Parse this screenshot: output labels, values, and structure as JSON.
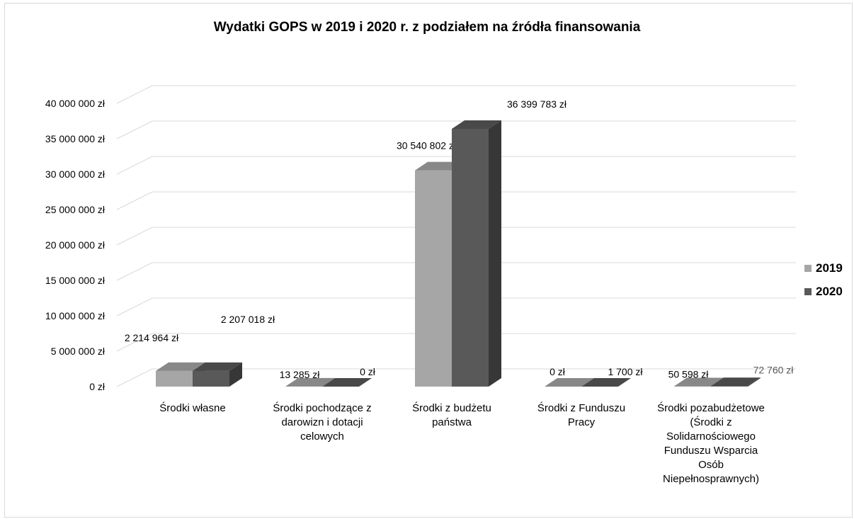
{
  "chart_data": {
    "type": "bar",
    "title": "Wydatki GOPS w 2019 i 2020 r. z podziałem na źródła finansowania",
    "categories": [
      "Środki własne",
      "Środki pochodzące z\ndarowizn i dotacji\ncelowych",
      "Środki z budżetu\npaństwa",
      "Środki z Funduszu\nPracy",
      "Środki pozabudżetowe\n(Środki z\nSolidarnościowego\nFunduszu Wsparcia\nOsób\nNiepełnosprawnych)"
    ],
    "series": [
      {
        "name": "2019",
        "color": "#a6a6a6",
        "values": [
          2214964,
          13285,
          30540802,
          0,
          50598
        ],
        "labels": [
          "2 214 964 zł",
          "13 285 zł",
          "30 540 802 zł",
          "0 zł",
          "50 598 zł"
        ]
      },
      {
        "name": "2020",
        "color": "#595959",
        "values": [
          2207018,
          0,
          36399783,
          1700,
          72760
        ],
        "labels": [
          "2 207 018 zł",
          "0 zł",
          "36 399 783 zł",
          "1 700 zł",
          "72 760 zł"
        ]
      }
    ],
    "yticks": [
      "0 zł",
      "5 000 000 zł",
      "10 000 000 zł",
      "15 000 000 zł",
      "20 000 000 zł",
      "25 000 000 zł",
      "30 000 000 zł",
      "35 000 000 zł",
      "40 000 000 zł"
    ],
    "ylim": [
      0,
      40000000
    ],
    "ytick_step": 5000000,
    "grid": true,
    "legend_position": "right",
    "style": "3d-clustered-column"
  }
}
